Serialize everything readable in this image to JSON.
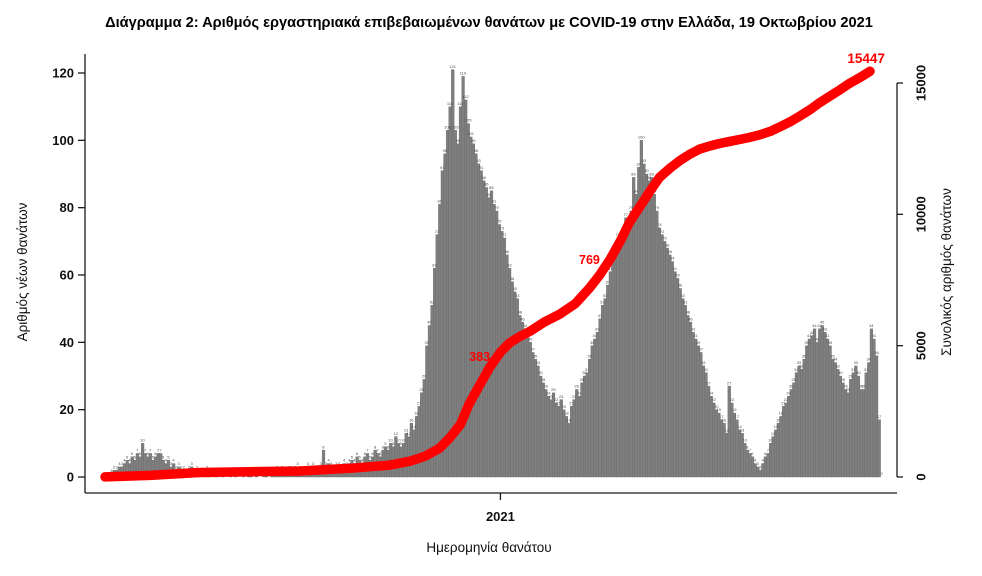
{
  "page": {
    "background": "#ffffff"
  },
  "chart_data": {
    "type": "bar",
    "overlay_type": "line",
    "title": "Διάγραμμα 2: Αριθμός εργαστηριακά επιβεβαιωμένων θανάτων με COVID-19 στην Ελλάδα, 19 Οκτωβρίου 2021",
    "xlabel": "Ημερομηνία θανάτου",
    "ylabel_left": "Αριθμός νέων θανάτων",
    "ylabel_right": "Συνολικός αριθμός θανάτων",
    "x_axis": {
      "unit": "day-index (Mar 2020 – 19 Oct 2021)",
      "total_days": 592,
      "ticks": [
        {
          "day": 306,
          "label": "2021"
        }
      ]
    },
    "left_axis": {
      "range": [
        0,
        120
      ],
      "ticks": [
        0,
        20,
        40,
        60,
        80,
        100,
        120
      ]
    },
    "right_axis": {
      "range": [
        0,
        15000
      ],
      "ticks": [
        0,
        5000,
        10000,
        15000
      ]
    },
    "daily_deaths_bars": {
      "days_per_bar": 2,
      "values": [
        0,
        0,
        1,
        2,
        2,
        3,
        3,
        4,
        5,
        4,
        6,
        5,
        7,
        6,
        10,
        7,
        6,
        7,
        5,
        6,
        7,
        7,
        5,
        4,
        5,
        3,
        4,
        2,
        3,
        2,
        2,
        1,
        2,
        3,
        1,
        2,
        1,
        0,
        1,
        2,
        1,
        0,
        1,
        1,
        0,
        1,
        0,
        0,
        1,
        0,
        1,
        0,
        0,
        1,
        0,
        1,
        1,
        0,
        1,
        0,
        0,
        1,
        1,
        0,
        1,
        1,
        2,
        1,
        2,
        1,
        1,
        2,
        1,
        2,
        3,
        2,
        1,
        2,
        3,
        2,
        3,
        2,
        2,
        3,
        8,
        3,
        4,
        3,
        2,
        3,
        3,
        2,
        4,
        3,
        4,
        5,
        4,
        6,
        5,
        4,
        6,
        7,
        5,
        6,
        8,
        7,
        6,
        8,
        9,
        8,
        10,
        9,
        12,
        10,
        9,
        10,
        13,
        12,
        16,
        14,
        18,
        21,
        25,
        29,
        39,
        45,
        51,
        62,
        72,
        81,
        91,
        96,
        103,
        110,
        121,
        103,
        99,
        110,
        119,
        112,
        105,
        101,
        99,
        96,
        93,
        91,
        88,
        86,
        83,
        85,
        81,
        79,
        75,
        73,
        71,
        66,
        62,
        58,
        55,
        53,
        48,
        46,
        44,
        42,
        40,
        37,
        35,
        33,
        30,
        28,
        26,
        24,
        23,
        25,
        22,
        21,
        23,
        20,
        18,
        16,
        21,
        23,
        26,
        24,
        28,
        30,
        31,
        35,
        39,
        41,
        43,
        47,
        51,
        53,
        57,
        61,
        64,
        67,
        71,
        69,
        73,
        77,
        75,
        79,
        89,
        84,
        92,
        100,
        93,
        90,
        88,
        89,
        84,
        79,
        74,
        72,
        70,
        68,
        66,
        64,
        61,
        59,
        56,
        53,
        51,
        48,
        46,
        43,
        41,
        39,
        37,
        33,
        31,
        27,
        24,
        22,
        20,
        19,
        17,
        16,
        13,
        27,
        22,
        19,
        17,
        14,
        13,
        10,
        8,
        7,
        6,
        4,
        3,
        2,
        4,
        6,
        7,
        10,
        12,
        14,
        16,
        18,
        21,
        22,
        24,
        26,
        28,
        31,
        33,
        32,
        35,
        39,
        41,
        42,
        44,
        40,
        44,
        45,
        43,
        41,
        39,
        35,
        34,
        32,
        30,
        28,
        26,
        25,
        29,
        31,
        33,
        30,
        26,
        26,
        31,
        34,
        44,
        41,
        36,
        17,
        0
      ]
    },
    "cumulative_line": {
      "final_value": 15447,
      "points": [
        [
          0,
          5
        ],
        [
          35,
          60
        ],
        [
          73,
          170
        ],
        [
          112,
          200
        ],
        [
          151,
          230
        ],
        [
          190,
          330
        ],
        [
          220,
          450
        ],
        [
          236,
          600
        ],
        [
          248,
          800
        ],
        [
          259,
          1100
        ],
        [
          267,
          1500
        ],
        [
          275,
          2000
        ],
        [
          282,
          2800
        ],
        [
          290,
          3500
        ],
        [
          298,
          4200
        ],
        [
          306,
          4750
        ],
        [
          313,
          5100
        ],
        [
          321,
          5350
        ],
        [
          329,
          5550
        ],
        [
          340,
          5900
        ],
        [
          352,
          6200
        ],
        [
          364,
          6600
        ],
        [
          375,
          7200
        ],
        [
          383,
          7700
        ],
        [
          391,
          8300
        ],
        [
          399,
          9000
        ],
        [
          406,
          9700
        ],
        [
          414,
          10300
        ],
        [
          422,
          10900
        ],
        [
          429,
          11400
        ],
        [
          437,
          11750
        ],
        [
          445,
          12050
        ],
        [
          453,
          12300
        ],
        [
          460,
          12480
        ],
        [
          468,
          12600
        ],
        [
          476,
          12700
        ],
        [
          484,
          12780
        ],
        [
          491,
          12850
        ],
        [
          499,
          12930
        ],
        [
          507,
          13030
        ],
        [
          515,
          13160
        ],
        [
          522,
          13320
        ],
        [
          530,
          13520
        ],
        [
          538,
          13750
        ],
        [
          546,
          14000
        ],
        [
          553,
          14250
        ],
        [
          561,
          14500
        ],
        [
          569,
          14750
        ],
        [
          576,
          14980
        ],
        [
          584,
          15200
        ],
        [
          592,
          15447
        ]
      ]
    },
    "annotations": [
      {
        "text": "383",
        "day": 298,
        "value": 4416,
        "anchor": "end",
        "size": 12.5
      },
      {
        "text": "769",
        "day": 383,
        "value": 8109,
        "anchor": "end",
        "size": 12.5
      },
      {
        "text": "15447",
        "day": 589,
        "value": 15760,
        "anchor": "middle",
        "size": 13.5
      }
    ],
    "colors": {
      "bar_fill": "#7f7f7f",
      "bar_edge": "#666666",
      "bar_label": "#4a4a4a",
      "line": "#ff0000",
      "axis": "#1a1a1a"
    },
    "legend": "none",
    "grid": "off"
  }
}
